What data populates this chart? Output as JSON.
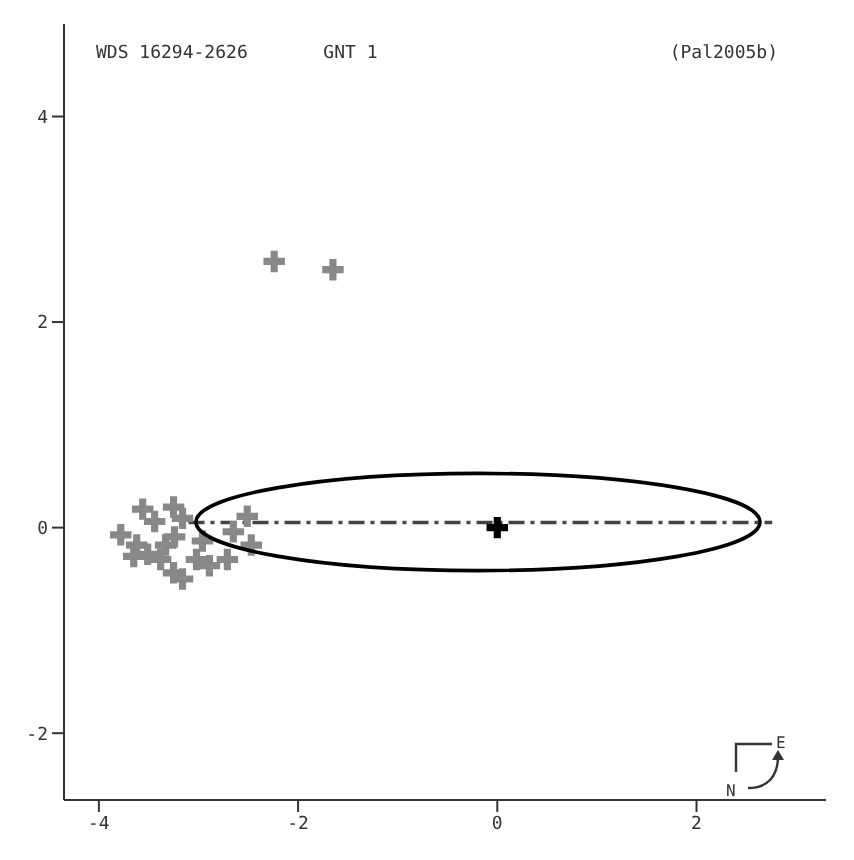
{
  "chart_data": {
    "type": "scatter",
    "title": "WDS 16294-2626",
    "subtitle": "GNT 1",
    "annotations": [
      "(Pal2005b)",
      "N",
      "E"
    ],
    "xlim": [
      -4.35,
      3.3
    ],
    "ylim": [
      -2.65,
      4.9
    ],
    "xticks": [
      -4,
      -2,
      0,
      2
    ],
    "yticks": [
      -2,
      0,
      2,
      4
    ],
    "grid": false,
    "series": [
      {
        "type": "line",
        "color": "#444444",
        "line_style": "dashed",
        "marker": "none",
        "x": [
          -3.1,
          2.76
        ],
        "values": [
          0.05,
          0.05
        ]
      },
      {
        "type": "scatter",
        "color": "#888888",
        "marker": "cross",
        "x": [
          -3.78,
          -3.56,
          -3.25,
          -3.16,
          -3.44,
          -3.62,
          -3.51,
          -3.38,
          -3.25,
          -3.16,
          -3.02,
          -2.89,
          -2.71,
          -2.51,
          -2.47,
          -3.33,
          -2.96,
          -3.65,
          -3.24,
          -2.65,
          -2.24,
          -1.65
        ],
        "values": [
          -0.07,
          0.18,
          0.2,
          0.09,
          0.06,
          -0.17,
          -0.26,
          -0.31,
          -0.44,
          -0.5,
          -0.31,
          -0.37,
          -0.31,
          0.11,
          -0.17,
          -0.17,
          -0.13,
          -0.28,
          -0.09,
          -0.04,
          2.59,
          2.51
        ]
      },
      {
        "type": "scatter",
        "color": "#000000",
        "marker": "cross",
        "x": [
          0
        ],
        "values": [
          0
        ]
      }
    ]
  }
}
